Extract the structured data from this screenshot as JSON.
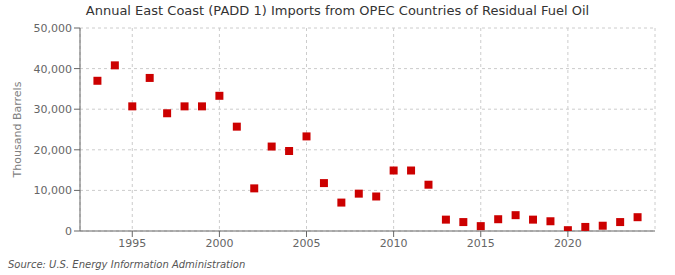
{
  "chart_data": {
    "type": "scatter",
    "title": "Annual East Coast (PADD 1) Imports from OPEC Countries of Residual Fuel Oil",
    "ylabel": "Thousand Barrels",
    "source": "Source: U.S. Energy Information Administration",
    "x": [
      1993,
      1994,
      1995,
      1996,
      1997,
      1998,
      1999,
      2000,
      2001,
      2002,
      2003,
      2004,
      2005,
      2006,
      2007,
      2008,
      2009,
      2010,
      2011,
      2012,
      2013,
      2014,
      2015,
      2016,
      2017,
      2018,
      2019,
      2020,
      2021,
      2022,
      2023,
      2024
    ],
    "values": [
      37000,
      40800,
      30700,
      37700,
      29000,
      30700,
      30700,
      33300,
      25700,
      10500,
      20800,
      19700,
      23300,
      11800,
      7000,
      9200,
      8500,
      14900,
      14900,
      11400,
      2800,
      2200,
      1200,
      2900,
      3900,
      2800,
      2400,
      200,
      1000,
      1300,
      2200,
      3400
    ],
    "color": "#cc0000",
    "marker": "square",
    "xlim": [
      1992,
      2025
    ],
    "xticks": [
      1995,
      2000,
      2005,
      2010,
      2015,
      2020
    ],
    "ylim": [
      0,
      50000
    ],
    "yticks": [
      0,
      {
        "value": 10000,
        "label": "10,000"
      },
      {
        "value": 20000,
        "label": "20,000"
      },
      {
        "value": 30000,
        "label": "30,000"
      },
      {
        "value": 40000,
        "label": "40,000"
      },
      {
        "value": 50000,
        "label": "50,000"
      }
    ],
    "grid": true
  }
}
